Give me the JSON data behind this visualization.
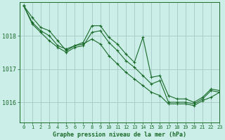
{
  "background_color": "#cceee8",
  "grid_color": "#aacccc",
  "line_color": "#1a6b2a",
  "title": "Graphe pression niveau de la mer (hPa)",
  "xlim": [
    -0.5,
    23
  ],
  "ylim": [
    1015.4,
    1019.0
  ],
  "yticks": [
    1016,
    1017,
    1018
  ],
  "xticks": [
    0,
    1,
    2,
    3,
    4,
    5,
    6,
    7,
    8,
    9,
    10,
    11,
    12,
    13,
    14,
    15,
    16,
    17,
    18,
    19,
    20,
    21,
    22,
    23
  ],
  "series": [
    [
      1018.9,
      1018.55,
      1018.25,
      1018.15,
      1017.85,
      1017.55,
      1017.7,
      1017.8,
      1018.3,
      1018.3,
      1017.95,
      1017.75,
      1017.45,
      1017.2,
      1017.95,
      1016.75,
      1016.8,
      1016.2,
      1016.1,
      1016.1,
      1016.0,
      1016.15,
      1016.4,
      1016.35
    ],
    [
      1018.9,
      1018.4,
      1018.15,
      1018.0,
      1017.7,
      1017.6,
      1017.7,
      1017.75,
      1017.9,
      1017.75,
      1017.4,
      1017.15,
      1016.9,
      1016.7,
      1016.5,
      1016.3,
      1016.2,
      1015.95,
      1015.95,
      1015.95,
      1015.9,
      1016.05,
      1016.15,
      1016.3
    ],
    [
      1018.9,
      1018.35,
      1018.1,
      1017.85,
      1017.65,
      1017.5,
      1017.65,
      1017.7,
      1018.1,
      1018.15,
      1017.8,
      1017.55,
      1017.25,
      1017.05,
      1016.8,
      1016.55,
      1016.65,
      1016.0,
      1016.0,
      1016.0,
      1015.95,
      1016.1,
      1016.35,
      1016.3
    ]
  ]
}
